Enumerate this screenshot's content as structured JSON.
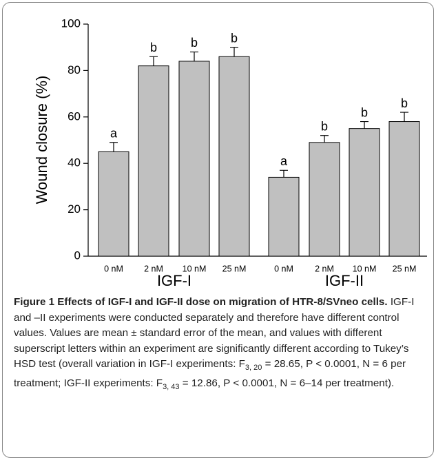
{
  "chart_data": {
    "type": "bar",
    "y_label": "Wound closure (%)",
    "categories": [
      "0 nM",
      "2 nM",
      "10 nM",
      "25 nM",
      "0 nM",
      "2 nM",
      "10 nM",
      "25 nM"
    ],
    "group_labels": [
      "IGF-I",
      "IGF-II"
    ],
    "values": [
      45,
      82,
      84,
      86,
      34,
      49,
      55,
      58
    ],
    "errors": [
      4,
      4,
      4,
      4,
      3,
      3,
      3,
      4
    ],
    "letters": [
      "a",
      "b",
      "b",
      "b",
      "a",
      "b",
      "b",
      "b"
    ],
    "color": "#c0c0c0",
    "ylim": [
      0,
      100
    ],
    "yticks": [
      0,
      20,
      40,
      60,
      80,
      100
    ]
  },
  "caption": {
    "title": "Figure 1 Effects of IGF-I and IGF-II dose on migration of HTR-8/SVneo cells.",
    "body": [
      "IGF-I and –II experiments were conducted separately and therefore have different control values. Values are mean ± standard error of the mean, and values with different superscript letters within an experiment are significantly different according to Tukey’s HSD test (overall variation in IGF-I experiments: F",
      "3, 20",
      " = 28.65, P < 0.0001, N = 6 per treatment; IGF-II experiments: F",
      "3, 43",
      " = 12.86, P < 0.0001, N = 6–14 per treatment)."
    ]
  }
}
